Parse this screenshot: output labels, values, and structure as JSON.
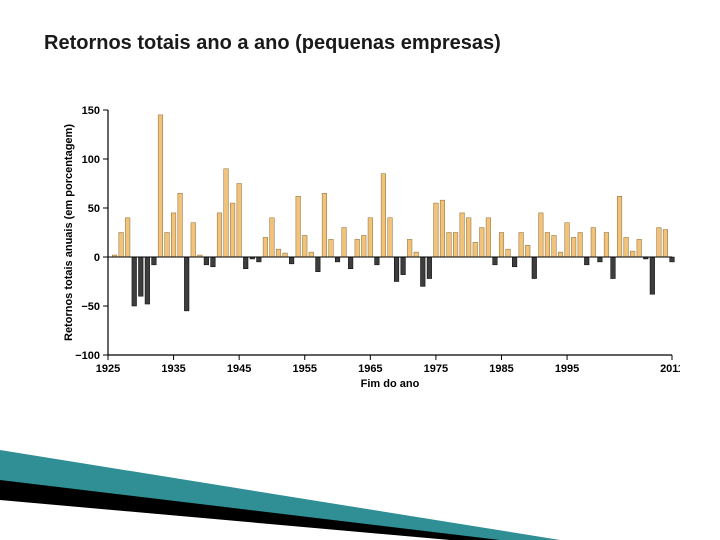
{
  "title": "Retornos totais ano a ano (pequenas empresas)",
  "chart": {
    "type": "bar",
    "xlabel": "Fim do ano",
    "ylabel": "Retornos totais anuais (em porcentagem)",
    "ylim": [
      -100,
      150
    ],
    "ytick_step": 50,
    "xlim": [
      1925,
      2011
    ],
    "xticks": [
      1925,
      1935,
      1945,
      1955,
      1965,
      1975,
      1985,
      1995,
      2011
    ],
    "background_color": "#ffffff",
    "axis_color": "#000000",
    "positive_fill": "#f0c27a",
    "positive_stroke": "#8a6a34",
    "negative_fill": "#3d3d3d",
    "negative_stroke": "#000000",
    "bar_width_years": 0.7,
    "label_fontsize": 11,
    "tick_fontsize": 11,
    "years": [
      1926,
      1927,
      1928,
      1929,
      1930,
      1931,
      1932,
      1933,
      1934,
      1935,
      1936,
      1937,
      1938,
      1939,
      1940,
      1941,
      1942,
      1943,
      1944,
      1945,
      1946,
      1947,
      1948,
      1949,
      1950,
      1951,
      1952,
      1953,
      1954,
      1955,
      1956,
      1957,
      1958,
      1959,
      1960,
      1961,
      1962,
      1963,
      1964,
      1965,
      1966,
      1967,
      1968,
      1969,
      1970,
      1971,
      1972,
      1973,
      1974,
      1975,
      1976,
      1977,
      1978,
      1979,
      1980,
      1981,
      1982,
      1983,
      1984,
      1985,
      1986,
      1987,
      1988,
      1989,
      1990,
      1991,
      1992,
      1993,
      1994,
      1995,
      1996,
      1997,
      1998,
      1999,
      2000,
      2001,
      2002,
      2003,
      2004,
      2005,
      2006,
      2007,
      2008,
      2009,
      2010,
      2011
    ],
    "values": [
      2,
      25,
      40,
      -50,
      -40,
      -48,
      -8,
      145,
      25,
      45,
      65,
      -55,
      35,
      2,
      -8,
      -10,
      45,
      90,
      55,
      75,
      -12,
      -2,
      -5,
      20,
      40,
      8,
      4,
      -7,
      62,
      22,
      5,
      -15,
      65,
      18,
      -5,
      30,
      -12,
      18,
      22,
      40,
      -8,
      85,
      40,
      -25,
      -18,
      18,
      5,
      -30,
      -22,
      55,
      58,
      25,
      25,
      45,
      40,
      15,
      30,
      40,
      -8,
      25,
      8,
      -10,
      25,
      12,
      -22,
      45,
      25,
      22,
      5,
      35,
      20,
      25,
      -8,
      30,
      -5,
      25,
      -22,
      62,
      20,
      6,
      18,
      -2,
      -38,
      30,
      28,
      -5
    ]
  },
  "wedge": {
    "teal": "#2f8f95",
    "white": "#ffffff",
    "black": "#000000"
  }
}
